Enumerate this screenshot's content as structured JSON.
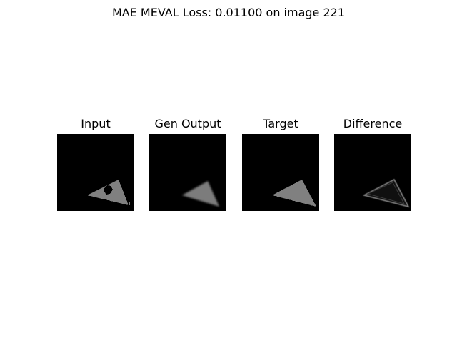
{
  "figure": {
    "title": "MAE MEVAL Loss: 0.01100 on image 221"
  },
  "panels": [
    {
      "title": "Input"
    },
    {
      "title": "Gen Output"
    },
    {
      "title": "Target"
    },
    {
      "title": "Difference"
    }
  ]
}
